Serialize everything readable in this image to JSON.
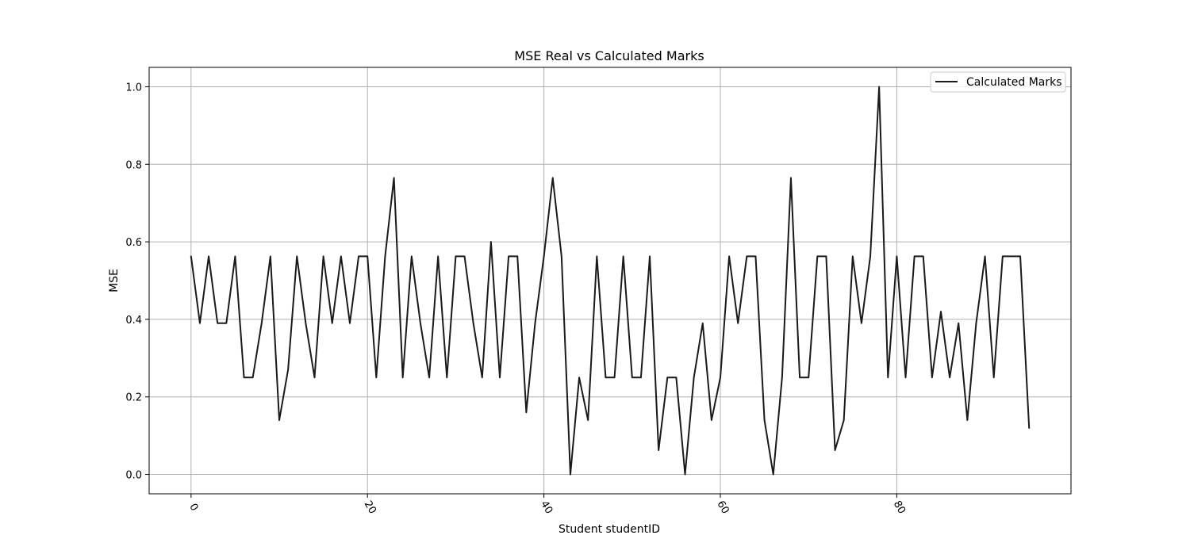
{
  "chart_data": {
    "type": "line",
    "title": "MSE Real vs Calculated Marks",
    "xlabel": "Student studentID",
    "ylabel": "MSE",
    "xlim": [
      -4.75,
      99.75
    ],
    "ylim": [
      -0.05,
      1.05
    ],
    "xticks": [
      0,
      20,
      40,
      60,
      80
    ],
    "yticks": [
      0.0,
      0.2,
      0.4,
      0.6,
      0.8,
      1.0
    ],
    "xtick_labels": [
      "0",
      "20",
      "40",
      "60",
      "80"
    ],
    "ytick_labels": [
      "0.0",
      "0.2",
      "0.4",
      "0.6",
      "0.8",
      "1.0"
    ],
    "grid": true,
    "legend_position": "top-right",
    "series": [
      {
        "name": "Calculated Marks",
        "color": "#1a1a1a",
        "x": [
          0,
          1,
          2,
          3,
          4,
          5,
          6,
          7,
          8,
          9,
          10,
          11,
          12,
          13,
          14,
          15,
          16,
          17,
          18,
          19,
          20,
          21,
          22,
          23,
          24,
          25,
          26,
          27,
          28,
          29,
          30,
          31,
          32,
          33,
          34,
          35,
          36,
          37,
          38,
          39,
          40,
          41,
          42,
          43,
          44,
          45,
          46,
          47,
          48,
          49,
          50,
          51,
          52,
          53,
          54,
          55,
          56,
          57,
          58,
          59,
          60,
          61,
          62,
          63,
          64,
          65,
          66,
          67,
          68,
          69,
          70,
          71,
          72,
          73,
          74,
          75,
          76,
          77,
          78,
          79,
          80,
          81,
          82,
          83,
          84,
          85,
          86,
          87,
          88,
          89,
          90,
          91,
          92,
          93,
          94,
          95
        ],
        "values": [
          0.5625,
          0.39,
          0.5625,
          0.39,
          0.39,
          0.5625,
          0.25,
          0.25,
          0.39,
          0.5625,
          0.14,
          0.27,
          0.5625,
          0.39,
          0.25,
          0.5625,
          0.39,
          0.5625,
          0.39,
          0.5625,
          0.5625,
          0.25,
          0.5625,
          0.765,
          0.25,
          0.5625,
          0.39,
          0.25,
          0.5625,
          0.25,
          0.5625,
          0.5625,
          0.39,
          0.25,
          0.6,
          0.25,
          0.5625,
          0.5625,
          0.16,
          0.39,
          0.5625,
          0.765,
          0.5625,
          0.0,
          0.25,
          0.14,
          0.5625,
          0.25,
          0.25,
          0.5625,
          0.25,
          0.25,
          0.5625,
          0.0625,
          0.25,
          0.25,
          0.0,
          0.25,
          0.39,
          0.14,
          0.25,
          0.5625,
          0.39,
          0.5625,
          0.5625,
          0.14,
          0.0,
          0.25,
          0.765,
          0.25,
          0.25,
          0.5625,
          0.5625,
          0.0625,
          0.14,
          0.5625,
          0.39,
          0.5625,
          1.0,
          0.25,
          0.5625,
          0.25,
          0.5625,
          0.5625,
          0.25,
          0.42,
          0.25,
          0.39,
          0.14,
          0.39,
          0.5625,
          0.25,
          0.5625,
          0.5625,
          0.5625,
          0.12
        ]
      }
    ]
  }
}
